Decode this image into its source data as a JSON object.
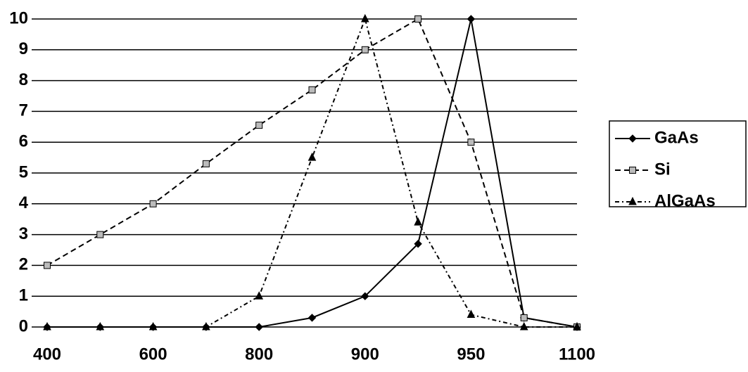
{
  "chart_data": {
    "type": "line",
    "categories": [
      "400",
      null,
      "600",
      null,
      "800",
      null,
      "900",
      null,
      "950",
      null,
      "1100"
    ],
    "series": [
      {
        "name": "GaAs",
        "color": "#000000",
        "dash": "solid",
        "marker": "diamond",
        "values": [
          0,
          0,
          0,
          0,
          0,
          0.3,
          1,
          2.7,
          10,
          0.3,
          0
        ]
      },
      {
        "name": "Si",
        "color": "#000000",
        "dash": "dashed",
        "marker": "square",
        "values": [
          2,
          3,
          4,
          5.3,
          6.55,
          7.7,
          9,
          10,
          6,
          0.3,
          0
        ]
      },
      {
        "name": "AlGaAs",
        "color": "#000000",
        "dash": "dashdot",
        "marker": "triangle",
        "values": [
          0,
          0,
          0,
          0,
          1,
          5.5,
          10,
          3.4,
          0.4,
          0,
          0
        ]
      }
    ],
    "ylim": [
      0,
      10
    ],
    "yticks": [
      0,
      1,
      2,
      3,
      4,
      5,
      6,
      7,
      8,
      9,
      10
    ],
    "grid": true,
    "legend": "right"
  }
}
